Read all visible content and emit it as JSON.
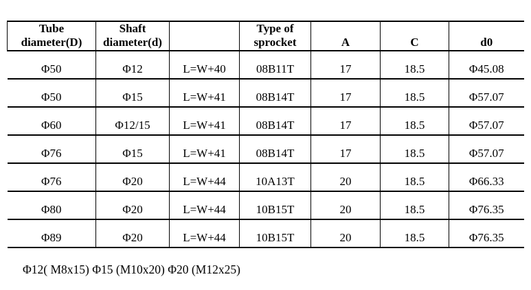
{
  "table": {
    "headers": [
      "Tube\ndiameter(D)",
      "Shaft\ndiameter(d)",
      "",
      "Type of\nsprocket",
      "A",
      "C",
      "d0"
    ],
    "rows": [
      [
        "Φ50",
        "Φ12",
        "L=W+40",
        "08B11T",
        "17",
        "18.5",
        "Φ45.08"
      ],
      [
        "Φ50",
        "Φ15",
        "L=W+41",
        "08B14T",
        "17",
        "18.5",
        "Φ57.07"
      ],
      [
        "Φ60",
        "Φ12/15",
        "L=W+41",
        "08B14T",
        "17",
        "18.5",
        "Φ57.07"
      ],
      [
        "Φ76",
        "Φ15",
        "L=W+41",
        "08B14T",
        "17",
        "18.5",
        "Φ57.07"
      ],
      [
        "Φ76",
        "Φ20",
        "L=W+44",
        "10A13T",
        "20",
        "18.5",
        "Φ66.33"
      ],
      [
        "Φ80",
        "Φ20",
        "L=W+44",
        "10B15T",
        "20",
        "18.5",
        "Φ76.35"
      ],
      [
        "Φ89",
        "Φ20",
        "L=W+44",
        "10B15T",
        "20",
        "18.5",
        "Φ76.35"
      ]
    ]
  },
  "footnote": "Φ12( M8x15) Φ15 (M10x20) Φ20 (M12x25)",
  "colors": {
    "background": "#ffffff",
    "border": "#000000",
    "text": "#000000"
  }
}
